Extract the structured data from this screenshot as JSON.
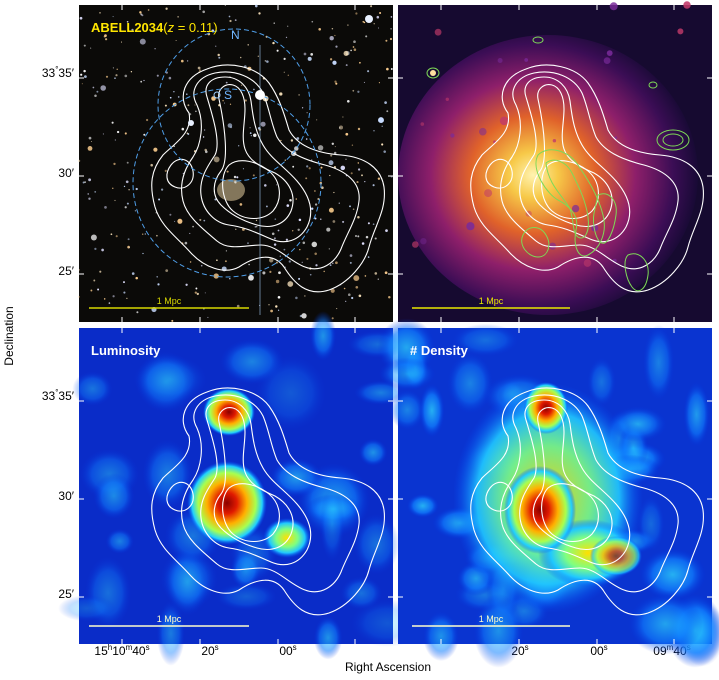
{
  "figure": {
    "x_axis_label": "Right Ascension",
    "y_axis_label": "Declination",
    "y_ticks": [
      {
        "prefix": "33",
        "deg": "°",
        "rest": "35′"
      },
      {
        "prefix": "",
        "deg": "",
        "rest": "30′"
      },
      {
        "prefix": "",
        "deg": "",
        "rest": "25′"
      }
    ],
    "x_ticks": [
      {
        "h": "15",
        "hu": "h",
        "m": "10",
        "mu": "m",
        "s": "40",
        "su": "s"
      },
      {
        "h": "",
        "hu": "",
        "m": "",
        "mu": "",
        "s": "20",
        "su": "s"
      },
      {
        "h": "",
        "hu": "",
        "m": "",
        "mu": "",
        "s": "00",
        "su": "s"
      },
      {
        "h": "",
        "hu": "",
        "m": "09",
        "mu": "m",
        "s": "40",
        "su": "s"
      }
    ],
    "scale_bar_label": "1 Mpc",
    "colors": {
      "title_yellow": "#ffe600",
      "contour_white": "#ffffff",
      "radio_green": "#7ed957",
      "circle_blue": "#4f9ee8",
      "scale_optical": "#d8d800",
      "scale_xray": "#e8e800",
      "scale_map": "#ffffcc"
    },
    "panels": [
      {
        "id": "optical",
        "title_main": "ABELL2034",
        "title_open": "(",
        "title_z": "z",
        "title_eq": " = 0.11)",
        "marker_n": "N",
        "marker_s": "S"
      },
      {
        "id": "xray"
      },
      {
        "id": "luminosity",
        "title": "Luminosity"
      },
      {
        "id": "density",
        "title": "# Density"
      }
    ]
  }
}
